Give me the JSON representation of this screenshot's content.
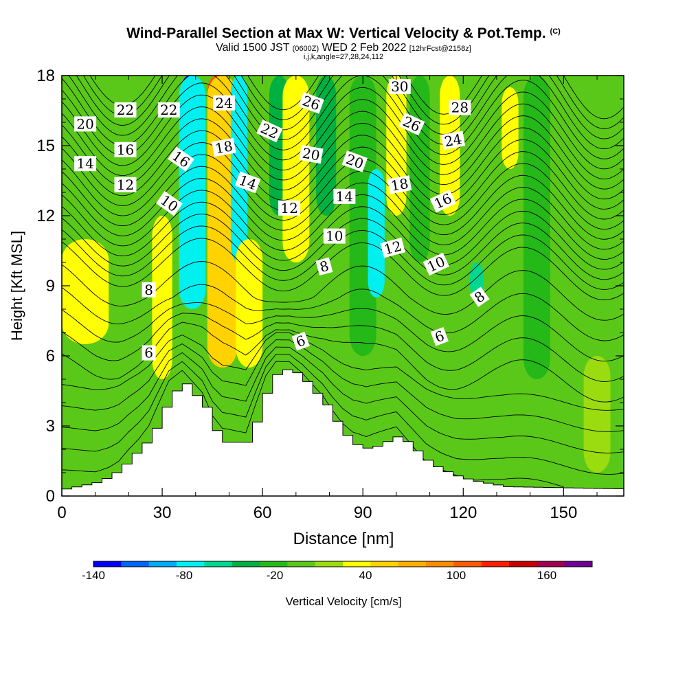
{
  "header": {
    "title": "Wind-Parallel Section at Max W: Vertical Velocity & Pot.Temp.",
    "title_mark": "(C)",
    "valid_prefix": "Valid 1500 JST",
    "valid_zulu": "(0600Z)",
    "valid_date": "WED 2 Feb 2022",
    "forecast": "[12hrFcst@2158z]",
    "grid_info": "i,j,k,angle=27,28,24,112"
  },
  "chart_data": {
    "type": "heatmap",
    "xlabel": "Distance [nm]",
    "ylabel": "Height [Kft MSL]",
    "xlim": [
      0,
      168
    ],
    "ylim": [
      0,
      18
    ],
    "xticks": [
      0,
      30,
      60,
      90,
      120,
      150
    ],
    "yticks": [
      0,
      3,
      6,
      9,
      12,
      15,
      18
    ],
    "grid": false,
    "field_bands": [
      {
        "x_center": 7,
        "half_width": 7,
        "y_from": 6.5,
        "y_to": 11,
        "value": 40
      },
      {
        "x_center": 30,
        "half_width": 3,
        "y_from": 5,
        "y_to": 12,
        "value": 40
      },
      {
        "x_center": 38,
        "half_width": 2.5,
        "y_from": 13,
        "y_to": 18,
        "value": -140
      },
      {
        "x_center": 39,
        "half_width": 4,
        "y_from": 8,
        "y_to": 18,
        "value": -80
      },
      {
        "x_center": 46,
        "half_width": 2.5,
        "y_from": 8,
        "y_to": 18,
        "value": 120
      },
      {
        "x_center": 48,
        "half_width": 4.5,
        "y_from": 5.5,
        "y_to": 18,
        "value": 70
      },
      {
        "x_center": 53,
        "half_width": 2.5,
        "y_from": 10,
        "y_to": 18,
        "value": -80
      },
      {
        "x_center": 56,
        "half_width": 4,
        "y_from": 5.5,
        "y_to": 11,
        "value": 40
      },
      {
        "x_center": 65,
        "half_width": 3,
        "y_from": 12,
        "y_to": 18,
        "value": -40
      },
      {
        "x_center": 70,
        "half_width": 4,
        "y_from": 10,
        "y_to": 18,
        "value": 40
      },
      {
        "x_center": 79,
        "half_width": 3,
        "y_from": 12,
        "y_to": 18,
        "value": -40
      },
      {
        "x_center": 90,
        "half_width": 4,
        "y_from": 6,
        "y_to": 18,
        "value": -20
      },
      {
        "x_center": 94,
        "half_width": 2.5,
        "y_from": 8.5,
        "y_to": 14,
        "value": -80
      },
      {
        "x_center": 100,
        "half_width": 3,
        "y_from": 12,
        "y_to": 18,
        "value": 40
      },
      {
        "x_center": 107,
        "half_width": 3,
        "y_from": 10,
        "y_to": 18,
        "value": -20
      },
      {
        "x_center": 116,
        "half_width": 3,
        "y_from": 12,
        "y_to": 18,
        "value": 40
      },
      {
        "x_center": 124,
        "half_width": 2,
        "y_from": 8.5,
        "y_to": 10,
        "value": -60
      },
      {
        "x_center": 134,
        "half_width": 2.5,
        "y_from": 14,
        "y_to": 17.5,
        "value": 40
      },
      {
        "x_center": 142,
        "half_width": 4,
        "y_from": 5,
        "y_to": 18,
        "value": -20
      },
      {
        "x_center": 160,
        "half_width": 4,
        "y_from": 1,
        "y_to": 6,
        "value": 20
      }
    ],
    "terrain_kft": [
      [
        0,
        0.3
      ],
      [
        10,
        0.6
      ],
      [
        14,
        0.9
      ],
      [
        17,
        1.2
      ],
      [
        20,
        1.7
      ],
      [
        23,
        2.1
      ],
      [
        26,
        2.6
      ],
      [
        29,
        3.5
      ],
      [
        32,
        4.4
      ],
      [
        36,
        4.8
      ],
      [
        42,
        3.8
      ],
      [
        45,
        2.8
      ],
      [
        48,
        2.3
      ],
      [
        51,
        2.3
      ],
      [
        55,
        2.3
      ],
      [
        58,
        3.6
      ],
      [
        61,
        4.8
      ],
      [
        64,
        5.4
      ],
      [
        68,
        5.4
      ],
      [
        72,
        4.9
      ],
      [
        75,
        4.4
      ],
      [
        78,
        3.9
      ],
      [
        81,
        3.2
      ],
      [
        84,
        2.6
      ],
      [
        87,
        2.2
      ],
      [
        91,
        2.0
      ],
      [
        94,
        2.2
      ],
      [
        97,
        2.4
      ],
      [
        100,
        2.6
      ],
      [
        103,
        2.2
      ],
      [
        106,
        1.8
      ],
      [
        109,
        1.4
      ],
      [
        113,
        1.1
      ],
      [
        118,
        0.8
      ],
      [
        124,
        0.6
      ],
      [
        132,
        0.4
      ],
      [
        168,
        0.3
      ]
    ],
    "theta_contours": {
      "levels": [
        2,
        3,
        4,
        5,
        6,
        7,
        8,
        9,
        10,
        11,
        12,
        13,
        14,
        15,
        16,
        17,
        18,
        19,
        20,
        21,
        22,
        23,
        24,
        25,
        26,
        27,
        28,
        29,
        30
      ],
      "labels": [
        {
          "text": "20",
          "x": 7,
          "y": 15.9,
          "angle": 0
        },
        {
          "text": "14",
          "x": 7,
          "y": 14.2,
          "angle": 0
        },
        {
          "text": "22",
          "x": 19,
          "y": 16.5,
          "angle": 0
        },
        {
          "text": "16",
          "x": 19,
          "y": 14.8,
          "angle": 0
        },
        {
          "text": "12",
          "x": 19,
          "y": 13.3,
          "angle": 0
        },
        {
          "text": "22",
          "x": 32,
          "y": 16.5,
          "angle": 0
        },
        {
          "text": "16",
          "x": 35.5,
          "y": 14.4,
          "angle": 35
        },
        {
          "text": "10",
          "x": 32,
          "y": 12.5,
          "angle": 35
        },
        {
          "text": "8",
          "x": 26,
          "y": 8.8,
          "angle": 0
        },
        {
          "text": "6",
          "x": 26,
          "y": 6.1,
          "angle": 0
        },
        {
          "text": "24",
          "x": 48.5,
          "y": 16.8,
          "angle": 0
        },
        {
          "text": "18",
          "x": 48.5,
          "y": 14.9,
          "angle": -10
        },
        {
          "text": "14",
          "x": 55.5,
          "y": 13.4,
          "angle": 20
        },
        {
          "text": "22",
          "x": 62,
          "y": 15.6,
          "angle": 25
        },
        {
          "text": "12",
          "x": 68,
          "y": 12.3,
          "angle": 0
        },
        {
          "text": "26",
          "x": 74.5,
          "y": 16.8,
          "angle": 20
        },
        {
          "text": "20",
          "x": 74.5,
          "y": 14.6,
          "angle": 10
        },
        {
          "text": "6",
          "x": 71.5,
          "y": 6.6,
          "angle": -20
        },
        {
          "text": "14",
          "x": 84.5,
          "y": 12.8,
          "angle": 0
        },
        {
          "text": "20",
          "x": 87.5,
          "y": 14.3,
          "angle": 20
        },
        {
          "text": "10",
          "x": 81.5,
          "y": 11.1,
          "angle": 0
        },
        {
          "text": "8",
          "x": 78.5,
          "y": 9.8,
          "angle": -15
        },
        {
          "text": "30",
          "x": 101,
          "y": 17.5,
          "angle": 0
        },
        {
          "text": "26",
          "x": 104.5,
          "y": 15.9,
          "angle": 25
        },
        {
          "text": "18",
          "x": 101,
          "y": 13.3,
          "angle": -10
        },
        {
          "text": "12",
          "x": 99,
          "y": 10.6,
          "angle": -15
        },
        {
          "text": "28",
          "x": 119,
          "y": 16.6,
          "angle": 0
        },
        {
          "text": "24",
          "x": 117,
          "y": 15.2,
          "angle": -10
        },
        {
          "text": "16",
          "x": 114,
          "y": 12.6,
          "angle": -25
        },
        {
          "text": "10",
          "x": 112,
          "y": 9.9,
          "angle": -25
        },
        {
          "text": "6",
          "x": 113,
          "y": 6.8,
          "angle": -20
        },
        {
          "text": "8",
          "x": 125,
          "y": 8.5,
          "angle": -35
        }
      ]
    },
    "colorbar": {
      "label": "Vertical Velocity [cm/s]",
      "min": -140,
      "max": 190,
      "step": 20,
      "tick_values": [
        -140,
        -80,
        -20,
        40,
        100,
        160
      ],
      "tick_labels": [
        "-140",
        "-80",
        "-20",
        "40",
        "100",
        "160"
      ],
      "colors": [
        "#0000ff",
        "#0064ff",
        "#00aaff",
        "#00f0f0",
        "#00d890",
        "#00b040",
        "#24b818",
        "#5ac818",
        "#9adc10",
        "#ffff00",
        "#ffd200",
        "#ffae00",
        "#ff8c00",
        "#ff5a00",
        "#ff1e00",
        "#c80000",
        "#a00050",
        "#6e0096"
      ]
    }
  }
}
